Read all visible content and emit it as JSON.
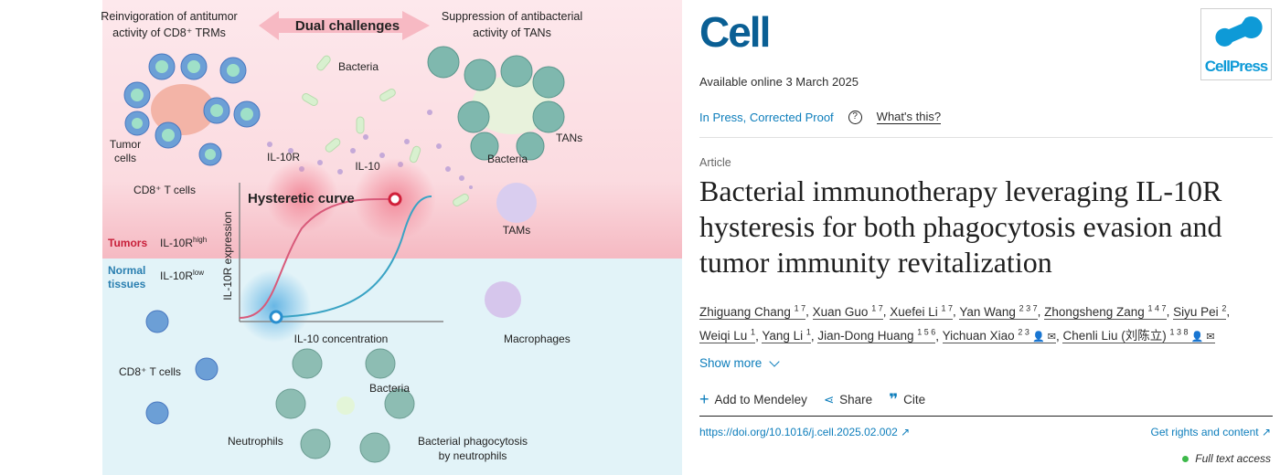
{
  "graphical_abstract": {
    "top_left": [
      "Reinvigoration of antitumor",
      "activity of CD8⁺ TRMs"
    ],
    "center": "Dual challenges",
    "top_right": [
      "Suppression of antibacterial",
      "activity of TANs"
    ],
    "bacteria": "Bacteria",
    "tumor_cells": [
      "Tumor",
      "cells"
    ],
    "il10r": "IL-10R",
    "il10": "IL-10",
    "cd8_t_cells": "CD8⁺ T cells",
    "bacteria_tans": "Bacteria",
    "tans": "TANs",
    "tams": "TAMs",
    "curve_title": "Hysteretic curve",
    "y_axis": "IL-10R expression",
    "x_axis": "IL-10 concentration",
    "tumors": "Tumors",
    "il10r_high": "IL-10R",
    "high": "high",
    "normal_tissues": [
      "Normal",
      "tissues"
    ],
    "il10r_low": "IL-10R",
    "low": "low",
    "macrophages": "Macrophages",
    "cd8_bottom": "CD8⁺ T cells",
    "bacteria_bottom": "Bacteria",
    "neutrophils": "Neutrophils",
    "phagocytosis": [
      "Bacterial phagocytosis",
      "by neutrophils"
    ],
    "colors": {
      "tumor_zone": "#fde6ea",
      "normal_zone": "#e2f3f8",
      "high_curve": "#d85a7a",
      "low_curve": "#3aa3c4",
      "tumors_label": "#c8203a",
      "normal_label": "#2a7fb0"
    }
  },
  "journal": {
    "name": "Cell",
    "publisher": "CellPress"
  },
  "available_online": "Available online 3 March 2025",
  "status": "In Press, Corrected Proof",
  "whats_this": "What's this?",
  "article_type": "Article",
  "title": "Bacterial immunotherapy leveraging IL-10R hysteresis for both phagocytosis evasion and tumor immunity revitalization",
  "authors": [
    {
      "name": "Zhiguang Chang",
      "sup": "1 7"
    },
    {
      "name": "Xuan Guo",
      "sup": "1 7"
    },
    {
      "name": "Xuefei Li",
      "sup": "1 7"
    },
    {
      "name": "Yan Wang",
      "sup": "2 3 7"
    },
    {
      "name": "Zhongsheng Zang",
      "sup": "1 4 7"
    },
    {
      "name": "Siyu Pei",
      "sup": "2"
    },
    {
      "name": "Weiqi Lu",
      "sup": "1"
    },
    {
      "name": "Yang Li",
      "sup": "1"
    },
    {
      "name": "Jian-Dong Huang",
      "sup": "1 5 6"
    },
    {
      "name": "Yichuan Xiao",
      "sup": "2 3"
    },
    {
      "name": "Chenli Liu (刘陈立)",
      "sup": "1 3 8"
    }
  ],
  "show_more": "Show more",
  "actions": {
    "mendeley": "Add to Mendeley",
    "share": "Share",
    "cite": "Cite"
  },
  "doi": "https://doi.org/10.1016/j.cell.2025.02.002",
  "rights": "Get rights and content",
  "access": "Full text access",
  "access_color": "#3db94a"
}
